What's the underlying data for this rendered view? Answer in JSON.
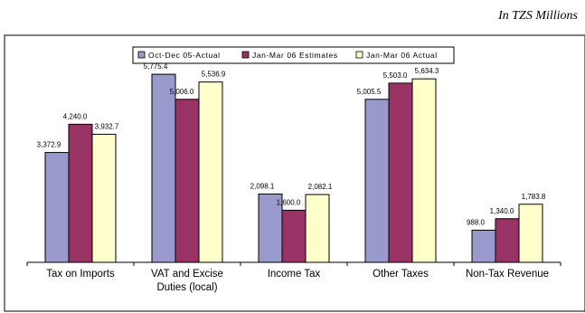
{
  "units_note": "In TZS Millions",
  "colors": {
    "series": [
      "#9999cc",
      "#993366",
      "#ffffcc"
    ]
  },
  "chart_data": {
    "type": "bar",
    "title": "",
    "xlabel": "",
    "ylabel": "",
    "legend_position": "top-center",
    "grid": false,
    "ylim": [
      0,
      6500
    ],
    "categories": [
      "Tax on Imports",
      "VAT and Excise Duties (local)",
      "Income Tax",
      "Other Taxes",
      "Non-Tax Revenue"
    ],
    "category_lines": [
      [
        "Tax on Imports"
      ],
      [
        "VAT and Excise",
        "Duties (local)"
      ],
      [
        "Income Tax"
      ],
      [
        "Other Taxes"
      ],
      [
        "Non-Tax Revenue"
      ]
    ],
    "series": [
      {
        "name": "Oct-Dec 05-Actual",
        "values": [
          3372.9,
          5775.4,
          2098.1,
          5005.5,
          988.0
        ],
        "labels": [
          "3,372.9",
          "5,775.4",
          "2,098.1",
          "5,005.5",
          "988.0"
        ]
      },
      {
        "name": "Jan-Mar 06 Estimates",
        "values": [
          4240.0,
          5006.0,
          1600.0,
          5503.0,
          1340.0
        ],
        "labels": [
          "4,240.0",
          "5,006.0",
          "1,600.0",
          "5,503.0",
          "1,340.0"
        ]
      },
      {
        "name": "Jan-Mar 06 Actual",
        "values": [
          3932.7,
          5536.9,
          2082.1,
          5634.3,
          1783.8
        ],
        "labels": [
          "3,932.7",
          "5,536.9",
          "2,082.1",
          "5,634.3",
          "1,783.8"
        ]
      }
    ]
  }
}
